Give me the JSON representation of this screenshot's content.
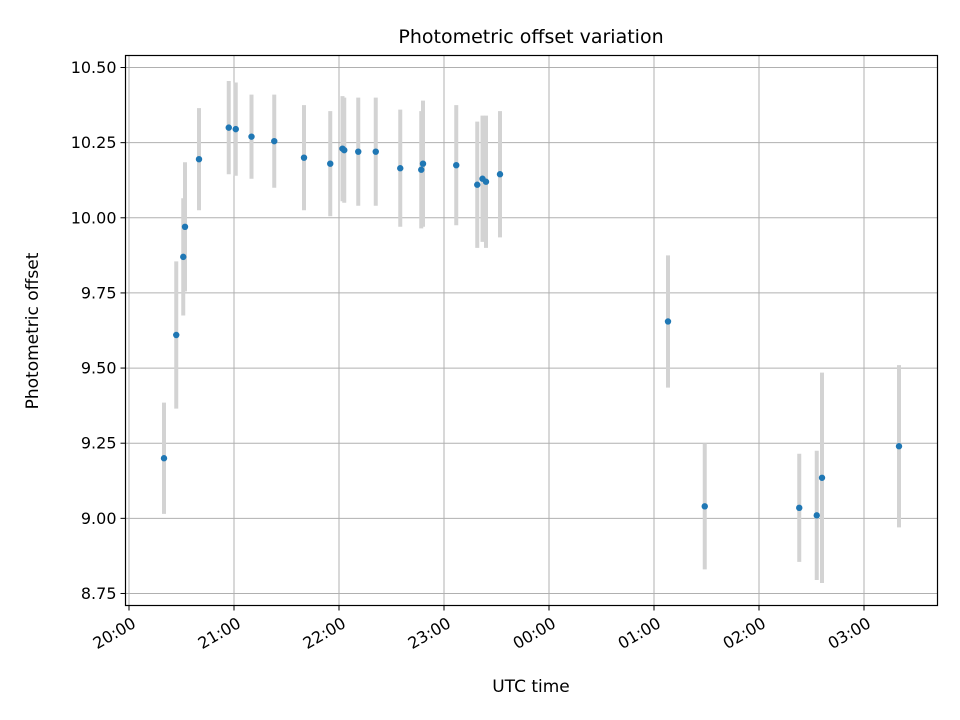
{
  "chart_data": {
    "type": "scatter",
    "title": "Photometric offset variation",
    "xlabel": "UTC time",
    "ylabel": "Photometric offset",
    "x_axis": {
      "kind": "time",
      "range": [
        "19:58",
        "03:42"
      ],
      "ticks": [
        "20:00",
        "21:00",
        "22:00",
        "23:00",
        "00:00",
        "01:00",
        "02:00",
        "03:00"
      ]
    },
    "y_axis": {
      "range": [
        8.71,
        10.54
      ],
      "ticks": [
        "8.75",
        "9.00",
        "9.25",
        "9.50",
        "9.75",
        "10.00",
        "10.25",
        "10.50"
      ]
    },
    "grid": true,
    "marker_color": "#1f77b4",
    "errorbar_color": "#d3d3d3",
    "points": [
      {
        "x": "20:20",
        "y": 9.2,
        "err": 0.185
      },
      {
        "x": "20:27",
        "y": 9.61,
        "err": 0.245
      },
      {
        "x": "20:31",
        "y": 9.87,
        "err": 0.195
      },
      {
        "x": "20:32",
        "y": 9.97,
        "err": 0.215
      },
      {
        "x": "20:40",
        "y": 10.195,
        "err": 0.17
      },
      {
        "x": "20:57",
        "y": 10.3,
        "err": 0.155
      },
      {
        "x": "21:01",
        "y": 10.295,
        "err": 0.155
      },
      {
        "x": "21:10",
        "y": 10.27,
        "err": 0.14
      },
      {
        "x": "21:23",
        "y": 10.255,
        "err": 0.155
      },
      {
        "x": "21:40",
        "y": 10.2,
        "err": 0.175
      },
      {
        "x": "21:55",
        "y": 10.18,
        "err": 0.175
      },
      {
        "x": "22:02",
        "y": 10.23,
        "err": 0.175
      },
      {
        "x": "22:03",
        "y": 10.225,
        "err": 0.175
      },
      {
        "x": "22:11",
        "y": 10.22,
        "err": 0.18
      },
      {
        "x": "22:21",
        "y": 10.22,
        "err": 0.18
      },
      {
        "x": "22:35",
        "y": 10.165,
        "err": 0.195
      },
      {
        "x": "22:47",
        "y": 10.16,
        "err": 0.195
      },
      {
        "x": "22:48",
        "y": 10.18,
        "err": 0.21
      },
      {
        "x": "23:07",
        "y": 10.175,
        "err": 0.2
      },
      {
        "x": "23:19",
        "y": 10.11,
        "err": 0.21
      },
      {
        "x": "23:22",
        "y": 10.13,
        "err": 0.21
      },
      {
        "x": "23:24",
        "y": 10.12,
        "err": 0.22
      },
      {
        "x": "23:32",
        "y": 10.145,
        "err": 0.21
      },
      {
        "x": "01:08",
        "y": 9.655,
        "err": 0.22
      },
      {
        "x": "01:29",
        "y": 9.04,
        "err": 0.21
      },
      {
        "x": "02:23",
        "y": 9.035,
        "err": 0.18
      },
      {
        "x": "02:33",
        "y": 9.01,
        "err": 0.215
      },
      {
        "x": "02:36",
        "y": 9.135,
        "err": 0.35
      },
      {
        "x": "03:20",
        "y": 9.24,
        "err": 0.27
      }
    ]
  }
}
